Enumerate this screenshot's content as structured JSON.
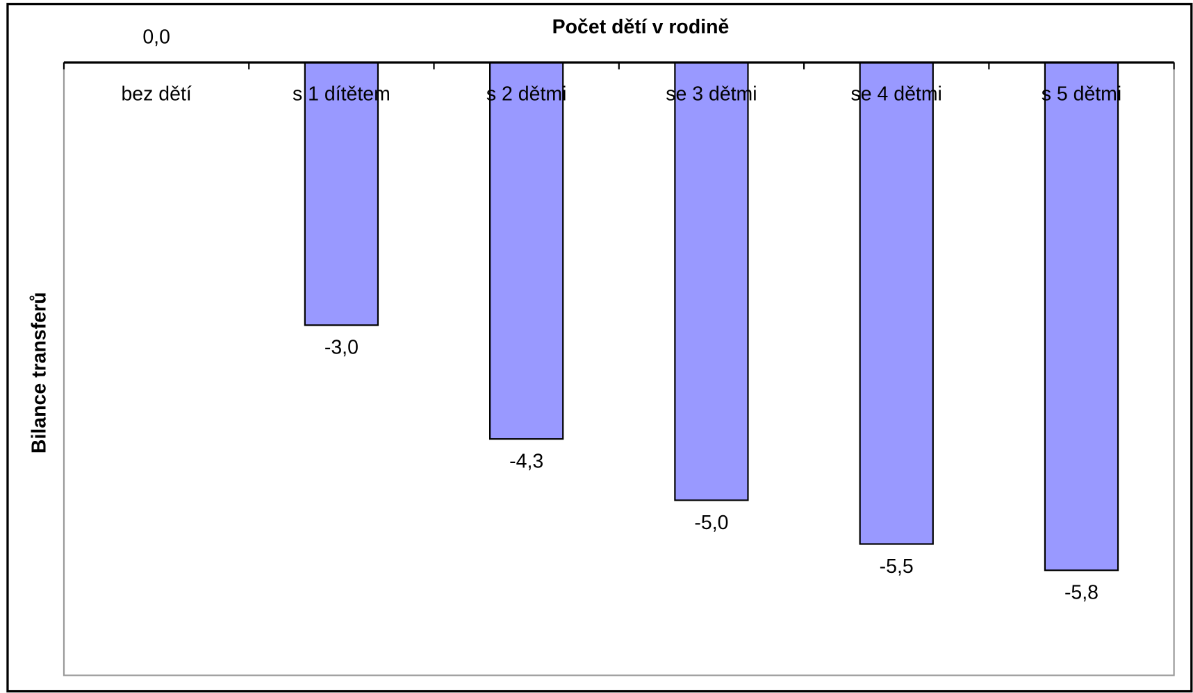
{
  "chart_data": {
    "type": "bar",
    "title": "Počet dětí v rodině",
    "y_label": "Bilance transferů",
    "categories": [
      "bez dětí",
      "s 1 dítětem",
      "s 2 dětmi",
      "se 3 dětmi",
      "se 4 dětmi",
      "s 5 dětmi"
    ],
    "values": [
      0,
      -3.0,
      -4.3,
      -5.0,
      -5.5,
      -5.8
    ],
    "value_labels": [
      "0,0",
      "-3,0",
      "-4,3",
      "-5,0",
      "-5,5",
      "-5,8"
    ],
    "color": "#9999ff",
    "ylim": [
      -7,
      0
    ],
    "grid": false
  }
}
